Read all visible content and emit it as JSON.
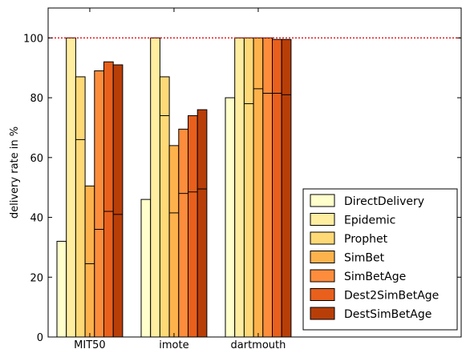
{
  "chart_data": {
    "type": "bar",
    "title": "",
    "xlabel": "",
    "ylabel": "delivery rate in %",
    "ylim": [
      0,
      110
    ],
    "yticks": [
      0,
      20,
      40,
      60,
      80,
      100
    ],
    "reference_line": {
      "y": 100,
      "color": "#e31a1c",
      "style": "dotted"
    },
    "grid": false,
    "legend_position": "lower-right",
    "categories": [
      "MIT50",
      "imote",
      "dartmouth"
    ],
    "series": [
      {
        "name": "DirectDelivery",
        "color": "#ffffcc",
        "values": [
          32,
          46,
          80
        ],
        "inner": [
          null,
          null,
          null
        ]
      },
      {
        "name": "Epidemic",
        "color": "#ffeda0",
        "values": [
          100,
          100,
          100
        ],
        "inner": [
          null,
          null,
          null
        ]
      },
      {
        "name": "Prophet",
        "color": "#fed976",
        "values": [
          87,
          87,
          100
        ],
        "inner": [
          66,
          74,
          78
        ]
      },
      {
        "name": "SimBet",
        "color": "#feb24c",
        "values": [
          50.5,
          64,
          100
        ],
        "inner": [
          24.5,
          41.5,
          83
        ]
      },
      {
        "name": "SimBetAge",
        "color": "#fd8d3c",
        "values": [
          89,
          69.5,
          100
        ],
        "inner": [
          36,
          48,
          81.5
        ]
      },
      {
        "name": "Dest2SimBetAge",
        "color": "#e8601c",
        "values": [
          92,
          74,
          99.5
        ],
        "inner": [
          42,
          48.5,
          81.5
        ]
      },
      {
        "name": "DestSimBetAge",
        "color": "#b83e08",
        "values": [
          91,
          76,
          99.5
        ],
        "inner": [
          41,
          49.5,
          81
        ]
      }
    ]
  }
}
